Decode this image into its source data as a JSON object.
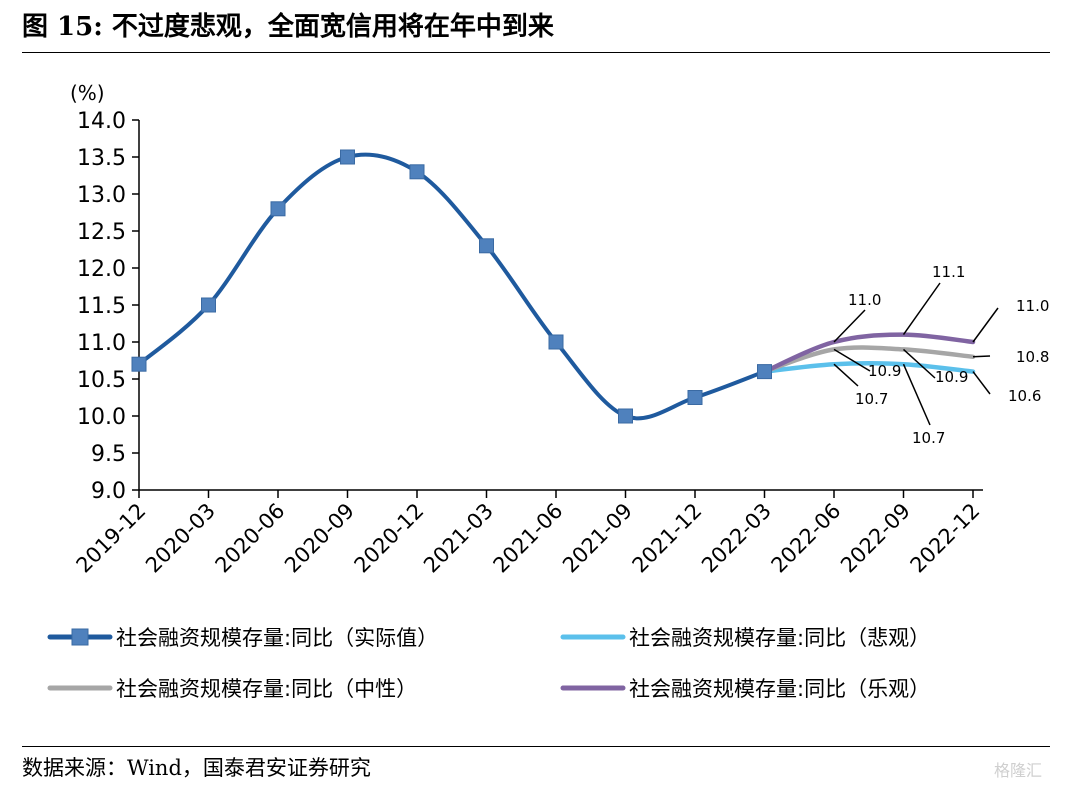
{
  "title": "图 15:  不过度悲观，全面宽信用将在年中到来",
  "source": "数据来源：Wind，国泰君安证券研究",
  "watermark": "格隆汇",
  "chart_data": {
    "type": "line",
    "title": "",
    "xlabel": "",
    "ylabel": "(%)",
    "ylim": [
      9.0,
      14.0
    ],
    "yticks": [
      "9.0",
      "9.5",
      "10.0",
      "10.5",
      "11.0",
      "11.5",
      "12.0",
      "12.5",
      "13.0",
      "13.5",
      "14.0"
    ],
    "categories": [
      "2019-12",
      "2020-03",
      "2020-06",
      "2020-09",
      "2020-12",
      "2021-03",
      "2021-06",
      "2021-09",
      "2021-12",
      "2022-03",
      "2022-06",
      "2022-09",
      "2022-12"
    ],
    "legend_position": "bottom",
    "grid": false,
    "series": [
      {
        "name": "社会融资规模存量:同比（实际值）",
        "color": "#1f5a9e",
        "marker": "square",
        "values": [
          10.7,
          11.5,
          12.8,
          13.5,
          13.3,
          12.3,
          11.0,
          10.0,
          10.25,
          10.6,
          null,
          null,
          null
        ]
      },
      {
        "name": "社会融资规模存量:同比（悲观）",
        "color": "#5bc0eb",
        "marker": "none",
        "values": [
          null,
          null,
          null,
          null,
          null,
          null,
          null,
          null,
          null,
          10.6,
          10.7,
          10.7,
          10.6
        ]
      },
      {
        "name": "社会融资规模存量:同比（中性）",
        "color": "#a6a6a6",
        "marker": "none",
        "values": [
          null,
          null,
          null,
          null,
          null,
          null,
          null,
          null,
          null,
          10.6,
          10.9,
          10.9,
          10.8
        ]
      },
      {
        "name": "社会融资规模存量:同比（乐观）",
        "color": "#8064a2",
        "marker": "none",
        "values": [
          null,
          null,
          null,
          null,
          null,
          null,
          null,
          null,
          null,
          10.6,
          11.0,
          11.1,
          11.0
        ]
      }
    ],
    "annotations": [
      {
        "text": "11.0",
        "series": 3,
        "index": 10
      },
      {
        "text": "10.9",
        "series": 2,
        "index": 10
      },
      {
        "text": "10.7",
        "series": 1,
        "index": 10
      },
      {
        "text": "11.1",
        "series": 3,
        "index": 11
      },
      {
        "text": "10.9",
        "series": 2,
        "index": 11
      },
      {
        "text": "10.7",
        "series": 1,
        "index": 11
      },
      {
        "text": "11.0",
        "series": 3,
        "index": 12
      },
      {
        "text": "10.8",
        "series": 2,
        "index": 12
      },
      {
        "text": "10.6",
        "series": 1,
        "index": 12
      }
    ]
  }
}
